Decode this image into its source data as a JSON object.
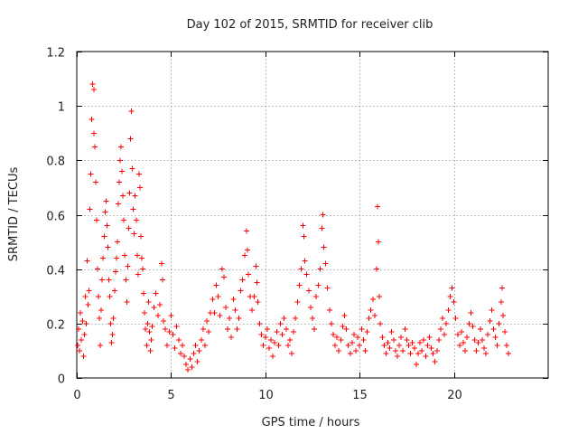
{
  "chart_data": {
    "type": "scatter",
    "title": "Day 102 of 2015, SRMTID for receiver clib",
    "xlabel": "GPS time / hours",
    "ylabel": "SRMTID / TECUs",
    "xlim": [
      0,
      25
    ],
    "ylim": [
      0,
      1.2
    ],
    "xticks": [
      0,
      5,
      10,
      15,
      20
    ],
    "xtick_labels": [
      "0",
      "5",
      "10",
      "15",
      "20"
    ],
    "yticks": [
      0,
      0.2,
      0.4,
      0.6,
      0.8,
      1,
      1.2
    ],
    "ytick_labels": [
      "0",
      "0.2",
      "0.4",
      "0.6",
      "0.8",
      "1",
      "1.2"
    ],
    "grid": true,
    "marker": "+",
    "color": "#ff0000",
    "series": [
      {
        "name": "SRMTID",
        "points": [
          [
            0.05,
            0.12
          ],
          [
            0.1,
            0.18
          ],
          [
            0.15,
            0.1
          ],
          [
            0.2,
            0.24
          ],
          [
            0.25,
            0.14
          ],
          [
            0.3,
            0.21
          ],
          [
            0.35,
            0.08
          ],
          [
            0.4,
            0.16
          ],
          [
            0.45,
            0.3
          ],
          [
            0.5,
            0.2
          ],
          [
            0.55,
            0.43
          ],
          [
            0.6,
            0.27
          ],
          [
            0.65,
            0.32
          ],
          [
            0.7,
            0.62
          ],
          [
            0.75,
            0.75
          ],
          [
            0.8,
            0.95
          ],
          [
            0.85,
            1.08
          ],
          [
            0.9,
            1.06
          ],
          [
            0.92,
            0.9
          ],
          [
            0.95,
            0.85
          ],
          [
            1.0,
            0.72
          ],
          [
            1.05,
            0.58
          ],
          [
            1.1,
            0.4
          ],
          [
            1.15,
            0.3
          ],
          [
            1.2,
            0.22
          ],
          [
            1.25,
            0.12
          ],
          [
            1.3,
            0.25
          ],
          [
            1.35,
            0.36
          ],
          [
            1.4,
            0.44
          ],
          [
            1.45,
            0.52
          ],
          [
            1.5,
            0.61
          ],
          [
            1.55,
            0.65
          ],
          [
            1.6,
            0.56
          ],
          [
            1.65,
            0.48
          ],
          [
            1.7,
            0.36
          ],
          [
            1.75,
            0.3
          ],
          [
            1.8,
            0.2
          ],
          [
            1.85,
            0.13
          ],
          [
            1.9,
            0.16
          ],
          [
            1.95,
            0.22
          ],
          [
            2.0,
            0.32
          ],
          [
            2.05,
            0.39
          ],
          [
            2.1,
            0.44
          ],
          [
            2.15,
            0.5
          ],
          [
            2.2,
            0.64
          ],
          [
            2.25,
            0.72
          ],
          [
            2.3,
            0.8
          ],
          [
            2.35,
            0.85
          ],
          [
            2.4,
            0.76
          ],
          [
            2.45,
            0.67
          ],
          [
            2.5,
            0.58
          ],
          [
            2.55,
            0.45
          ],
          [
            2.6,
            0.36
          ],
          [
            2.65,
            0.28
          ],
          [
            2.7,
            0.41
          ],
          [
            2.75,
            0.55
          ],
          [
            2.8,
            0.68
          ],
          [
            2.85,
            0.88
          ],
          [
            2.9,
            0.98
          ],
          [
            2.95,
            0.77
          ],
          [
            3.0,
            0.62
          ],
          [
            3.05,
            0.53
          ],
          [
            3.1,
            0.67
          ],
          [
            3.15,
            0.58
          ],
          [
            3.2,
            0.45
          ],
          [
            3.25,
            0.38
          ],
          [
            3.3,
            0.75
          ],
          [
            3.35,
            0.7
          ],
          [
            3.4,
            0.52
          ],
          [
            3.45,
            0.44
          ],
          [
            3.5,
            0.4
          ],
          [
            3.55,
            0.31
          ],
          [
            3.6,
            0.24
          ],
          [
            3.65,
            0.18
          ],
          [
            3.7,
            0.12
          ],
          [
            3.75,
            0.2
          ],
          [
            3.8,
            0.28
          ],
          [
            3.85,
            0.17
          ],
          [
            3.9,
            0.1
          ],
          [
            3.95,
            0.14
          ],
          [
            4.0,
            0.19
          ],
          [
            4.1,
            0.26
          ],
          [
            4.2,
            0.31
          ],
          [
            4.3,
            0.23
          ],
          [
            4.4,
            0.27
          ],
          [
            4.5,
            0.42
          ],
          [
            4.55,
            0.36
          ],
          [
            4.6,
            0.21
          ],
          [
            4.7,
            0.18
          ],
          [
            4.8,
            0.12
          ],
          [
            4.9,
            0.17
          ],
          [
            5.0,
            0.23
          ],
          [
            5.1,
            0.16
          ],
          [
            5.2,
            0.11
          ],
          [
            5.3,
            0.19
          ],
          [
            5.4,
            0.14
          ],
          [
            5.5,
            0.09
          ],
          [
            5.6,
            0.12
          ],
          [
            5.7,
            0.08
          ],
          [
            5.8,
            0.05
          ],
          [
            5.9,
            0.03
          ],
          [
            6.0,
            0.07
          ],
          [
            6.1,
            0.04
          ],
          [
            6.2,
            0.09
          ],
          [
            6.3,
            0.12
          ],
          [
            6.4,
            0.06
          ],
          [
            6.5,
            0.1
          ],
          [
            6.6,
            0.14
          ],
          [
            6.7,
            0.18
          ],
          [
            6.8,
            0.12
          ],
          [
            6.9,
            0.21
          ],
          [
            7.0,
            0.17
          ],
          [
            7.1,
            0.24
          ],
          [
            7.2,
            0.29
          ],
          [
            7.3,
            0.24
          ],
          [
            7.4,
            0.34
          ],
          [
            7.5,
            0.3
          ],
          [
            7.6,
            0.23
          ],
          [
            7.7,
            0.4
          ],
          [
            7.8,
            0.37
          ],
          [
            7.9,
            0.26
          ],
          [
            8.0,
            0.18
          ],
          [
            8.1,
            0.22
          ],
          [
            8.2,
            0.15
          ],
          [
            8.3,
            0.29
          ],
          [
            8.4,
            0.25
          ],
          [
            8.5,
            0.18
          ],
          [
            8.6,
            0.22
          ],
          [
            8.7,
            0.32
          ],
          [
            8.8,
            0.36
          ],
          [
            8.9,
            0.45
          ],
          [
            9.0,
            0.54
          ],
          [
            9.05,
            0.47
          ],
          [
            9.1,
            0.38
          ],
          [
            9.2,
            0.3
          ],
          [
            9.3,
            0.25
          ],
          [
            9.4,
            0.3
          ],
          [
            9.5,
            0.41
          ],
          [
            9.55,
            0.35
          ],
          [
            9.6,
            0.28
          ],
          [
            9.7,
            0.2
          ],
          [
            9.8,
            0.16
          ],
          [
            9.9,
            0.12
          ],
          [
            10.0,
            0.15
          ],
          [
            10.1,
            0.18
          ],
          [
            10.2,
            0.11
          ],
          [
            10.3,
            0.14
          ],
          [
            10.4,
            0.08
          ],
          [
            10.5,
            0.13
          ],
          [
            10.6,
            0.17
          ],
          [
            10.7,
            0.12
          ],
          [
            10.8,
            0.2
          ],
          [
            10.9,
            0.16
          ],
          [
            11.0,
            0.22
          ],
          [
            11.1,
            0.18
          ],
          [
            11.2,
            0.12
          ],
          [
            11.3,
            0.14
          ],
          [
            11.4,
            0.09
          ],
          [
            11.5,
            0.17
          ],
          [
            11.6,
            0.22
          ],
          [
            11.7,
            0.28
          ],
          [
            11.8,
            0.34
          ],
          [
            11.9,
            0.4
          ],
          [
            12.0,
            0.56
          ],
          [
            12.05,
            0.52
          ],
          [
            12.1,
            0.43
          ],
          [
            12.2,
            0.38
          ],
          [
            12.3,
            0.32
          ],
          [
            12.4,
            0.26
          ],
          [
            12.5,
            0.22
          ],
          [
            12.6,
            0.18
          ],
          [
            12.7,
            0.3
          ],
          [
            12.8,
            0.34
          ],
          [
            12.9,
            0.4
          ],
          [
            13.0,
            0.55
          ],
          [
            13.05,
            0.6
          ],
          [
            13.1,
            0.48
          ],
          [
            13.2,
            0.42
          ],
          [
            13.3,
            0.33
          ],
          [
            13.4,
            0.25
          ],
          [
            13.5,
            0.2
          ],
          [
            13.6,
            0.16
          ],
          [
            13.7,
            0.12
          ],
          [
            13.8,
            0.15
          ],
          [
            13.9,
            0.1
          ],
          [
            14.0,
            0.14
          ],
          [
            14.1,
            0.19
          ],
          [
            14.2,
            0.23
          ],
          [
            14.3,
            0.18
          ],
          [
            14.4,
            0.12
          ],
          [
            14.5,
            0.09
          ],
          [
            14.6,
            0.13
          ],
          [
            14.7,
            0.16
          ],
          [
            14.8,
            0.1
          ],
          [
            14.9,
            0.15
          ],
          [
            15.0,
            0.12
          ],
          [
            15.1,
            0.18
          ],
          [
            15.2,
            0.14
          ],
          [
            15.3,
            0.1
          ],
          [
            15.4,
            0.17
          ],
          [
            15.5,
            0.22
          ],
          [
            15.6,
            0.25
          ],
          [
            15.7,
            0.29
          ],
          [
            15.8,
            0.23
          ],
          [
            15.9,
            0.4
          ],
          [
            15.95,
            0.63
          ],
          [
            16.0,
            0.5
          ],
          [
            16.05,
            0.3
          ],
          [
            16.1,
            0.2
          ],
          [
            16.2,
            0.15
          ],
          [
            16.3,
            0.12
          ],
          [
            16.4,
            0.09
          ],
          [
            16.5,
            0.13
          ],
          [
            16.6,
            0.11
          ],
          [
            16.7,
            0.17
          ],
          [
            16.8,
            0.14
          ],
          [
            16.9,
            0.1
          ],
          [
            17.0,
            0.08
          ],
          [
            17.1,
            0.12
          ],
          [
            17.2,
            0.15
          ],
          [
            17.3,
            0.1
          ],
          [
            17.4,
            0.18
          ],
          [
            17.5,
            0.14
          ],
          [
            17.6,
            0.12
          ],
          [
            17.7,
            0.09
          ],
          [
            17.8,
            0.13
          ],
          [
            17.9,
            0.11
          ],
          [
            18.0,
            0.05
          ],
          [
            18.1,
            0.09
          ],
          [
            18.2,
            0.13
          ],
          [
            18.3,
            0.1
          ],
          [
            18.4,
            0.14
          ],
          [
            18.5,
            0.08
          ],
          [
            18.6,
            0.12
          ],
          [
            18.7,
            0.15
          ],
          [
            18.8,
            0.11
          ],
          [
            18.9,
            0.09
          ],
          [
            19.0,
            0.06
          ],
          [
            19.1,
            0.1
          ],
          [
            19.2,
            0.14
          ],
          [
            19.3,
            0.18
          ],
          [
            19.4,
            0.22
          ],
          [
            19.5,
            0.16
          ],
          [
            19.6,
            0.2
          ],
          [
            19.7,
            0.25
          ],
          [
            19.8,
            0.3
          ],
          [
            19.9,
            0.33
          ],
          [
            20.0,
            0.28
          ],
          [
            20.1,
            0.22
          ],
          [
            20.2,
            0.16
          ],
          [
            20.3,
            0.12
          ],
          [
            20.4,
            0.17
          ],
          [
            20.5,
            0.13
          ],
          [
            20.6,
            0.1
          ],
          [
            20.7,
            0.15
          ],
          [
            20.8,
            0.2
          ],
          [
            20.9,
            0.24
          ],
          [
            21.0,
            0.19
          ],
          [
            21.1,
            0.14
          ],
          [
            21.2,
            0.1
          ],
          [
            21.3,
            0.13
          ],
          [
            21.4,
            0.18
          ],
          [
            21.5,
            0.14
          ],
          [
            21.6,
            0.11
          ],
          [
            21.7,
            0.09
          ],
          [
            21.8,
            0.16
          ],
          [
            21.9,
            0.21
          ],
          [
            22.0,
            0.25
          ],
          [
            22.1,
            0.18
          ],
          [
            22.2,
            0.15
          ],
          [
            22.3,
            0.12
          ],
          [
            22.4,
            0.2
          ],
          [
            22.5,
            0.28
          ],
          [
            22.55,
            0.33
          ],
          [
            22.6,
            0.23
          ],
          [
            22.7,
            0.17
          ],
          [
            22.8,
            0.12
          ],
          [
            22.9,
            0.09
          ]
        ]
      }
    ]
  }
}
